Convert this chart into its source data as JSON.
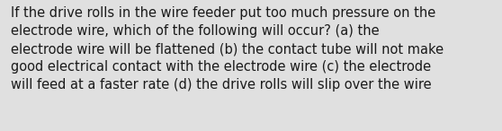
{
  "background_color": "#e0e0e0",
  "text_color": "#1a1a1a",
  "text": "If the drive rolls in the wire feeder put too much pressure on the\nelectrode wire, which of the following will occur? (a) the\nelectrode wire will be flattened (b) the contact tube will not make\ngood electrical contact with the electrode wire (c) the electrode\nwill feed at a faster rate (d) the drive rolls will slip over the wire",
  "font_size": 10.5,
  "font_weight": "normal",
  "font_family": "DejaVu Sans",
  "fig_width": 5.58,
  "fig_height": 1.46,
  "dpi": 100
}
